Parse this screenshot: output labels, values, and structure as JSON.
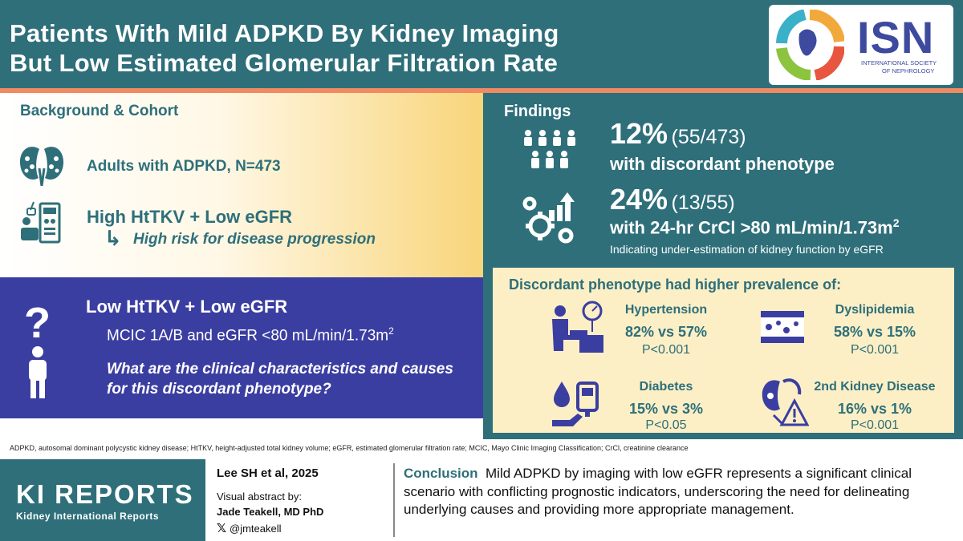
{
  "header": {
    "title_line1": "Patients With Mild ADPKD By Kidney Imaging",
    "title_line2": "But Low Estimated Glomerular Filtration Rate",
    "logo_text": "ISN",
    "logo_sub1": "INTERNATIONAL SOCIETY",
    "logo_sub2": "OF NEPHROLOGY"
  },
  "background": {
    "heading": "Background & Cohort",
    "adults": "Adults with ADPKD, N=473",
    "high": "High HtTKV + Low eGFR",
    "risk": "High risk for disease progression"
  },
  "low_panel": {
    "title": "Low HtTKV + Low eGFR",
    "mcic": "MCIC 1A/B and eGFR <80 mL/min/1.73m",
    "mcic_sup": "2",
    "question": "What are the clinical characteristics and causes for this discordant phenotype?"
  },
  "findings": {
    "heading": "Findings",
    "pct1": "12%",
    "frac1": "(55/473)",
    "disc": "with discordant phenotype",
    "pct2": "24%",
    "frac2": "(13/55)",
    "crcl": "with 24-hr CrCl >80 mL/min/1.73m",
    "crcl_sup": "2",
    "indicating": "Indicating under-estimation of kidney function by eGFR"
  },
  "prevalence": {
    "heading": "Discordant phenotype had higher prevalence of:",
    "items": [
      {
        "name": "Hypertension",
        "value": "82% vs 57%",
        "p": "P<0.001"
      },
      {
        "name": "Dyslipidemia",
        "value": "58% vs 15%",
        "p": "P<0.001"
      },
      {
        "name": "Diabetes",
        "value": "15% vs 3%",
        "p": "P<0.05"
      },
      {
        "name": "2nd Kidney Disease",
        "value": "16% vs 1%",
        "p": "P<0.001"
      }
    ]
  },
  "footnote": "ADPKD, autosomal dominant polycystic kidney disease; HtTKV, height-adjusted total kidney volume; eGFR, estimated glomerular filtration rate; MCIC, Mayo Clinic Imaging Classification; CrCl, creatinine clearance",
  "bottom": {
    "ki_logo": "KI REPORTS",
    "ki_sub": "Kidney International Reports",
    "citation": "Lee SH et al, 2025",
    "va_label": "Visual abstract by:",
    "author": "Jade Teakell, MD PhD",
    "x_glyph": "𝕏",
    "handle": "@jmteakell",
    "conclusion_label": "Conclusion",
    "conclusion": "Mild ADPKD by imaging with low eGFR represents a significant clinical scenario with conflicting prognostic indicators, underscoring the need for delineating underlying causes and providing more appropriate management."
  },
  "colors": {
    "teal": "#2e6f7a",
    "orange": "#ef8a62",
    "indigo": "#3b3ea1",
    "cream": "#fcefc6"
  }
}
